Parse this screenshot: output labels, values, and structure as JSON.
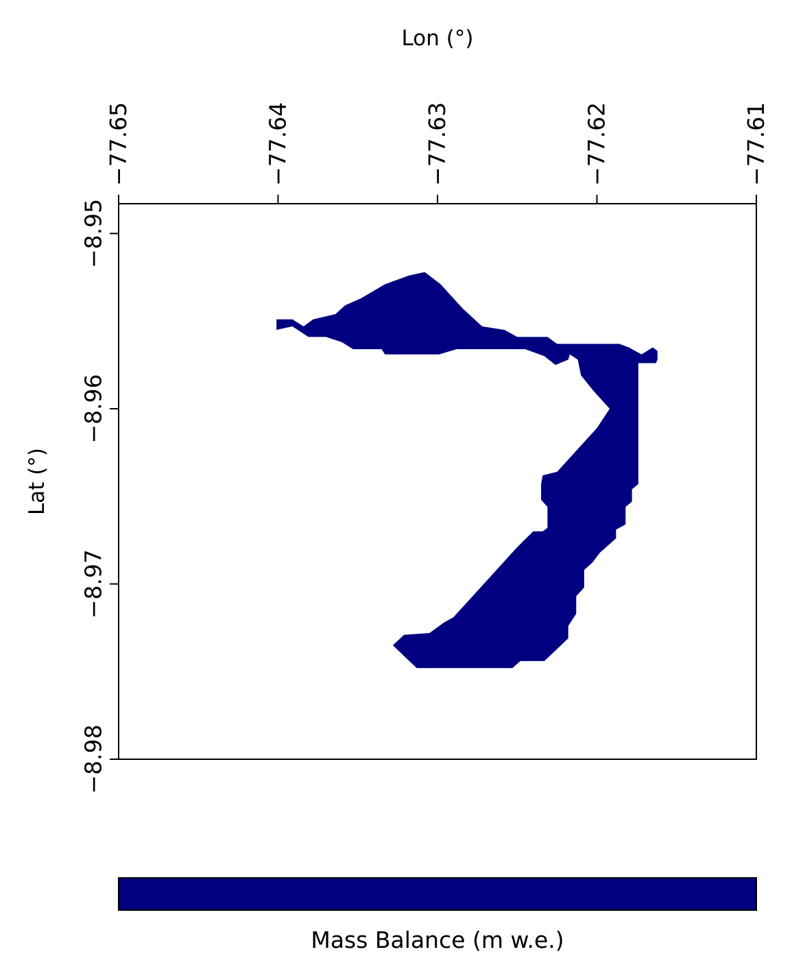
{
  "chart_data": {
    "type": "heatmap",
    "xlabel": "Lon (°)",
    "ylabel": "Lat (°)",
    "xlim": [
      -77.65,
      -77.61
    ],
    "ylim": [
      -8.98,
      -8.9483
    ],
    "x_ticks": [
      -77.65,
      -77.64,
      -77.63,
      -77.62,
      -77.61
    ],
    "x_tick_labels": [
      "−77.65",
      "−77.64",
      "−77.63",
      "−77.62",
      "−77.61"
    ],
    "y_ticks": [
      -8.95,
      -8.96,
      -8.97,
      -8.98
    ],
    "y_tick_labels": [
      "−8.95",
      "−8.96",
      "−8.97",
      "−8.98"
    ],
    "x_axis_position": "top",
    "grid": false,
    "colormap": "jet",
    "fill_color": "#000080",
    "colorbar": {
      "orientation": "horizontal",
      "placement": "bottom",
      "label": "Mass Balance (m w.e.)"
    },
    "glacier_outline_lonlat": [
      [
        -77.6401,
        -8.9549
      ],
      [
        -77.6391,
        -8.9549
      ],
      [
        -77.6384,
        -8.9553
      ],
      [
        -77.6378,
        -8.9549
      ],
      [
        -77.6364,
        -8.9546
      ],
      [
        -77.6358,
        -8.9541
      ],
      [
        -77.6348,
        -8.9537
      ],
      [
        -77.6333,
        -8.9529
      ],
      [
        -77.6318,
        -8.9524
      ],
      [
        -77.6308,
        -8.9522
      ],
      [
        -77.6298,
        -8.9529
      ],
      [
        -77.6284,
        -8.9543
      ],
      [
        -77.6272,
        -8.9553
      ],
      [
        -77.6258,
        -8.9555
      ],
      [
        -77.625,
        -8.9559
      ],
      [
        -77.6231,
        -8.9559
      ],
      [
        -77.6225,
        -8.9563
      ],
      [
        -77.6186,
        -8.9563
      ],
      [
        -77.618,
        -8.9565
      ],
      [
        -77.6172,
        -8.9569
      ],
      [
        -77.6165,
        -8.9565
      ],
      [
        -77.6162,
        -8.9567
      ],
      [
        -77.6162,
        -8.9572
      ],
      [
        -77.6163,
        -8.9574
      ],
      [
        -77.6174,
        -8.9574
      ],
      [
        -77.6174,
        -8.9643
      ],
      [
        -77.6178,
        -8.9646
      ],
      [
        -77.6178,
        -8.9653
      ],
      [
        -77.6182,
        -8.9656
      ],
      [
        -77.6182,
        -8.9666
      ],
      [
        -77.6188,
        -8.9669
      ],
      [
        -77.6188,
        -8.9674
      ],
      [
        -77.6198,
        -8.9682
      ],
      [
        -77.6203,
        -8.9688
      ],
      [
        -77.6208,
        -8.9692
      ],
      [
        -77.6208,
        -8.9702
      ],
      [
        -77.6213,
        -8.9707
      ],
      [
        -77.6213,
        -8.9717
      ],
      [
        -77.6218,
        -8.9724
      ],
      [
        -77.6218,
        -8.9731
      ],
      [
        -77.6226,
        -8.9738
      ],
      [
        -77.6233,
        -8.9744
      ],
      [
        -77.6248,
        -8.9744
      ],
      [
        -77.6253,
        -8.9748
      ],
      [
        -77.6313,
        -8.9748
      ],
      [
        -77.632,
        -8.9742
      ],
      [
        -77.6328,
        -8.9735
      ],
      [
        -77.6321,
        -8.9729
      ],
      [
        -77.6305,
        -8.9728
      ],
      [
        -77.6296,
        -8.9722
      ],
      [
        -77.629,
        -8.9719
      ],
      [
        -77.628,
        -8.9709
      ],
      [
        -77.627,
        -8.9699
      ],
      [
        -77.626,
        -8.9689
      ],
      [
        -77.625,
        -8.9679
      ],
      [
        -77.624,
        -8.967
      ],
      [
        -77.6234,
        -8.967
      ],
      [
        -77.6231,
        -8.9668
      ],
      [
        -77.6231,
        -8.9656
      ],
      [
        -77.6235,
        -8.9652
      ],
      [
        -77.6235,
        -8.9643
      ],
      [
        -77.6234,
        -8.9638
      ],
      [
        -77.6225,
        -8.9636
      ],
      [
        -77.622,
        -8.9631
      ],
      [
        -77.621,
        -8.9621
      ],
      [
        -77.62,
        -8.9611
      ],
      [
        -77.6192,
        -8.96
      ],
      [
        -77.6202,
        -8.959
      ],
      [
        -77.621,
        -8.9581
      ],
      [
        -77.6212,
        -8.9572
      ],
      [
        -77.6217,
        -8.9569
      ],
      [
        -77.6218,
        -8.9572
      ],
      [
        -77.6226,
        -8.9575
      ],
      [
        -77.6233,
        -8.957
      ],
      [
        -77.6245,
        -8.9566
      ],
      [
        -77.6275,
        -8.9566
      ],
      [
        -77.6288,
        -8.9566
      ],
      [
        -77.6299,
        -8.9569
      ],
      [
        -77.6318,
        -8.9569
      ],
      [
        -77.6333,
        -8.9569
      ],
      [
        -77.6335,
        -8.9566
      ],
      [
        -77.6353,
        -8.9566
      ],
      [
        -77.636,
        -8.9562
      ],
      [
        -77.637,
        -8.9559
      ],
      [
        -77.6381,
        -8.9559
      ],
      [
        -77.6391,
        -8.9553
      ],
      [
        -77.6401,
        -8.9555
      ]
    ]
  }
}
